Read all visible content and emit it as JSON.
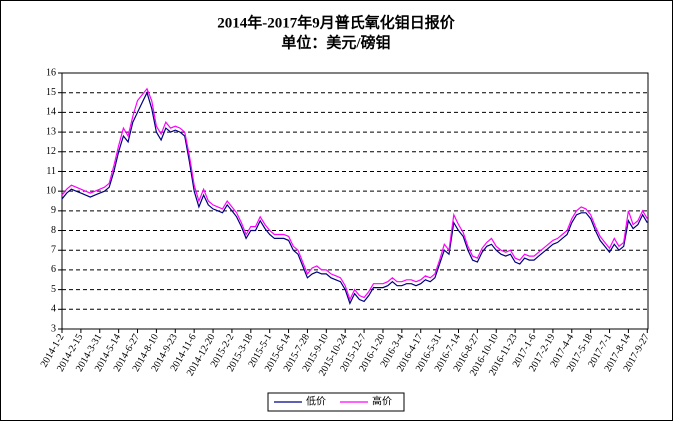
{
  "chart_data": {
    "type": "line",
    "title": "2014年-2017年9月普氏氧化钼日报价",
    "subtitle": "单位：美元/磅钼",
    "categories": [
      "2014-1-2",
      null,
      null,
      null,
      "2014-2-15",
      null,
      null,
      null,
      "2014-3-31",
      null,
      null,
      null,
      "2014-5-14",
      null,
      null,
      null,
      "2014-6-27",
      null,
      null,
      null,
      "2014-8-10",
      null,
      null,
      null,
      "2014-9-23",
      null,
      null,
      null,
      "2014-11-6",
      null,
      null,
      null,
      "2014-12-20",
      null,
      null,
      null,
      "2015-2-2",
      null,
      null,
      null,
      "2015-3-18",
      null,
      null,
      null,
      "2015-5-1",
      null,
      null,
      null,
      "2015-6-14",
      null,
      null,
      null,
      "2015-7-28",
      null,
      null,
      null,
      "2015-9-10",
      null,
      null,
      null,
      "2015-10-24",
      null,
      null,
      null,
      "2015-12-7",
      null,
      null,
      null,
      "2016-1-20",
      null,
      null,
      null,
      "2016-3-4",
      null,
      null,
      null,
      "2016-4-17",
      null,
      null,
      null,
      "2016-5-31",
      null,
      null,
      null,
      "2016-7-14",
      null,
      null,
      null,
      "2016-8-27",
      null,
      null,
      null,
      "2016-10-10",
      null,
      null,
      null,
      "2016-11-23",
      null,
      null,
      null,
      "2017-1-6",
      null,
      null,
      null,
      "2017-2-19",
      null,
      null,
      null,
      "2017-4-4",
      null,
      null,
      null,
      "2017-5-18",
      null,
      null,
      null,
      "2017-7-1",
      null,
      null,
      null,
      "2017-8-14",
      null,
      null,
      null,
      "2017-9-27"
    ],
    "series": [
      {
        "name": "低价",
        "color": "#000080",
        "values": [
          9.6,
          9.9,
          10.1,
          10.0,
          9.9,
          9.8,
          9.7,
          9.8,
          9.9,
          10.0,
          10.2,
          11.0,
          12.0,
          12.8,
          12.5,
          13.5,
          14.0,
          14.5,
          15.0,
          14.2,
          13.0,
          12.6,
          13.2,
          13.0,
          13.1,
          13.0,
          12.8,
          11.5,
          10.0,
          9.2,
          9.8,
          9.3,
          9.1,
          9.0,
          8.9,
          9.3,
          9.0,
          8.7,
          8.2,
          7.6,
          8.0,
          8.0,
          8.5,
          8.1,
          7.8,
          7.6,
          7.6,
          7.6,
          7.5,
          7.0,
          6.8,
          6.2,
          5.6,
          5.8,
          5.9,
          5.8,
          5.8,
          5.6,
          5.5,
          5.4,
          5.0,
          4.3,
          4.8,
          4.5,
          4.4,
          4.7,
          5.1,
          5.1,
          5.1,
          5.2,
          5.4,
          5.2,
          5.2,
          5.3,
          5.3,
          5.2,
          5.3,
          5.5,
          5.4,
          5.6,
          6.3,
          7.0,
          6.8,
          8.4,
          8.0,
          7.7,
          7.0,
          6.5,
          6.4,
          6.9,
          7.2,
          7.3,
          7.0,
          6.8,
          6.7,
          6.8,
          6.4,
          6.3,
          6.6,
          6.5,
          6.5,
          6.7,
          6.9,
          7.1,
          7.3,
          7.4,
          7.6,
          7.8,
          8.4,
          8.8,
          8.9,
          8.9,
          8.6,
          8.0,
          7.5,
          7.2,
          6.9,
          7.3,
          7.0,
          7.2,
          8.5,
          8.1,
          8.3,
          8.8,
          8.4
        ]
      },
      {
        "name": "高价",
        "color": "#ff00ff",
        "values": [
          9.8,
          10.1,
          10.3,
          10.2,
          10.1,
          10.0,
          9.9,
          10.0,
          10.1,
          10.2,
          10.4,
          11.3,
          12.3,
          13.2,
          12.8,
          13.8,
          14.6,
          14.9,
          15.2,
          14.6,
          13.3,
          12.9,
          13.5,
          13.2,
          13.3,
          13.2,
          13.0,
          11.8,
          10.3,
          9.5,
          10.1,
          9.5,
          9.3,
          9.2,
          9.1,
          9.5,
          9.2,
          8.9,
          8.4,
          7.8,
          8.2,
          8.2,
          8.7,
          8.3,
          8.0,
          7.8,
          7.8,
          7.8,
          7.7,
          7.2,
          7.0,
          6.4,
          5.8,
          6.1,
          6.2,
          6.0,
          6.0,
          5.8,
          5.7,
          5.6,
          5.2,
          4.5,
          5.0,
          4.7,
          4.6,
          4.9,
          5.3,
          5.3,
          5.3,
          5.4,
          5.6,
          5.4,
          5.4,
          5.5,
          5.5,
          5.4,
          5.5,
          5.7,
          5.6,
          5.8,
          6.5,
          7.3,
          7.0,
          8.8,
          8.3,
          7.9,
          7.2,
          6.7,
          6.6,
          7.1,
          7.4,
          7.6,
          7.2,
          7.0,
          6.9,
          7.0,
          6.6,
          6.5,
          6.8,
          6.7,
          6.7,
          6.9,
          7.1,
          7.3,
          7.5,
          7.6,
          7.8,
          8.0,
          8.6,
          9.0,
          9.2,
          9.1,
          8.8,
          8.2,
          7.7,
          7.4,
          7.1,
          7.6,
          7.2,
          7.4,
          9.0,
          8.3,
          8.5,
          9.0,
          8.6
        ]
      }
    ],
    "ylim": [
      3,
      16
    ],
    "yticks": [
      3,
      4,
      5,
      6,
      7,
      8,
      9,
      10,
      11,
      12,
      13,
      14,
      15,
      16
    ],
    "grid": true,
    "legend": "bottom"
  }
}
